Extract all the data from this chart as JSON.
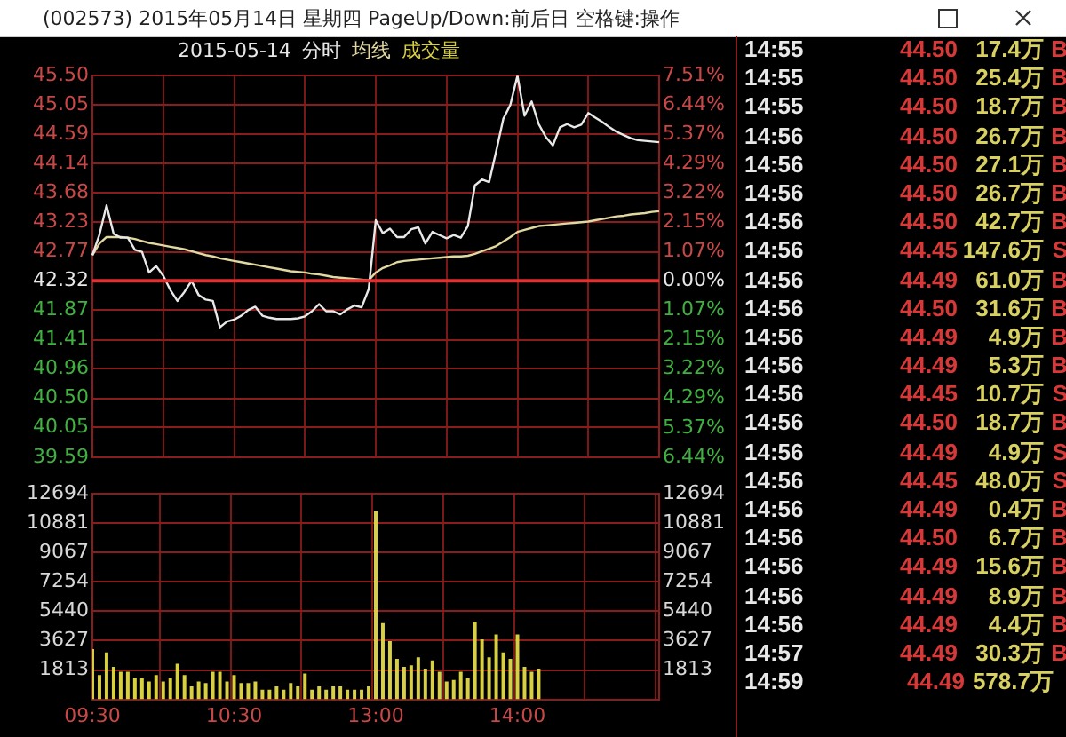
{
  "chart_data": [
    {
      "type": "line",
      "title": "2015-05-14",
      "subtitle": "(002573) 2015年05月14日 星期四 PageUp/Down:前后日 空格键:操作",
      "legend": "top left",
      "grid": true,
      "tick_labels": "y",
      "categories": [
        null,
        null,
        null,
        null,
        null,
        null,
        null,
        null,
        null,
        null,
        null,
        null,
        null,
        null,
        null,
        null,
        null,
        null,
        null,
        null,
        null,
        null,
        null,
        null,
        null,
        null,
        null,
        null,
        null,
        null,
        null,
        null,
        null,
        null,
        null,
        null,
        null,
        null,
        null,
        null,
        null,
        null,
        null,
        null,
        null,
        null,
        null,
        null,
        null,
        null,
        null,
        null,
        null,
        null,
        null,
        null,
        null,
        null,
        null,
        null,
        null,
        null,
        null,
        null,
        null,
        null,
        null,
        null,
        null,
        null,
        null,
        null,
        null,
        null,
        null,
        null,
        null,
        null,
        null,
        null,
        null
      ],
      "ylim": [
        39.59,
        45.5
      ],
      "yticks": [
        {
          "value": 45.5,
          "label": "45.50"
        },
        45.05,
        44.59,
        44.14,
        43.68,
        43.23,
        42.77,
        42.32,
        41.87,
        41.41,
        40.96,
        {
          "value": 40.5,
          "label": "40.50"
        },
        40.05,
        39.59
      ],
      "y2lim": [
        -6.44,
        7.51
      ],
      "y2ticks": [
        {
          "value": 7.51,
          "label": "7.51%"
        },
        {
          "value": 6.44,
          "label": "6.44%"
        },
        {
          "value": 5.37,
          "label": "5.37%"
        },
        {
          "value": 4.29,
          "label": "4.29%"
        },
        {
          "value": 3.22,
          "label": "3.22%"
        },
        {
          "value": 2.15,
          "label": "2.15%"
        },
        {
          "value": 1.07,
          "label": "1.07%"
        },
        {
          "value": 0,
          "label": "0.00%"
        },
        {
          "value": -1.07,
          "label": "1.07%"
        },
        {
          "value": -2.15,
          "label": "2.15%"
        },
        {
          "value": -3.22,
          "label": "3.22%"
        },
        {
          "value": -4.29,
          "label": "4.29%"
        },
        {
          "value": -5.37,
          "label": "5.37%"
        },
        {
          "value": -6.44,
          "label": "6.44%"
        }
      ],
      "ref_lines": [
        {
          "axis": "y",
          "value": 42.32,
          "color": "#e03030"
        }
      ],
      "series": [
        {
          "name": "分时",
          "color": "#e8e8e8",
          "values": [
            42.72,
            43.04,
            43.49,
            43.05,
            42.99,
            42.99,
            42.8,
            42.77,
            42.45,
            42.55,
            42.4,
            42.18,
            42.01,
            42.15,
            42.32,
            42.1,
            42.03,
            42.01,
            41.6,
            41.69,
            41.72,
            41.78,
            41.87,
            41.92,
            41.78,
            41.75,
            41.73,
            41.73,
            41.73,
            41.74,
            41.77,
            41.85,
            41.96,
            41.85,
            41.85,
            41.8,
            41.88,
            41.94,
            41.91,
            42.19,
            43.26,
            43.06,
            43.13,
            43.0,
            43.0,
            43.12,
            43.15,
            42.9,
            43.08,
            43.03,
            42.98,
            43.03,
            42.99,
            43.17,
            43.8,
            43.89,
            43.85,
            44.33,
            44.83,
            45.05,
            45.5,
            44.88,
            45.1,
            44.75,
            44.55,
            44.42,
            44.7,
            44.75,
            44.7,
            44.74,
            44.92,
            44.85,
            44.78,
            44.7,
            44.63,
            44.58,
            44.53,
            44.5,
            44.49,
            44.48,
            44.47
          ]
        },
        {
          "name": "均线",
          "color": "#e0d8a0",
          "values": [
            42.72,
            42.9,
            43.0,
            43.0,
            43.0,
            42.99,
            42.97,
            42.94,
            42.91,
            42.89,
            42.87,
            42.85,
            42.83,
            42.81,
            42.78,
            42.75,
            42.72,
            42.7,
            42.67,
            42.65,
            42.63,
            42.61,
            42.59,
            42.57,
            42.55,
            42.53,
            42.51,
            42.49,
            42.47,
            42.46,
            42.45,
            42.43,
            42.42,
            42.4,
            42.38,
            42.37,
            42.36,
            42.35,
            42.34,
            42.33,
            42.45,
            42.52,
            42.56,
            42.61,
            42.63,
            42.64,
            42.65,
            42.66,
            42.67,
            42.68,
            42.69,
            42.7,
            42.7,
            42.71,
            42.74,
            42.78,
            42.82,
            42.86,
            42.93,
            43.0,
            43.08,
            43.11,
            43.14,
            43.17,
            43.18,
            43.19,
            43.2,
            43.21,
            43.22,
            43.23,
            43.24,
            43.26,
            43.28,
            43.3,
            43.32,
            43.33,
            43.35,
            43.36,
            43.37,
            43.39,
            43.4
          ]
        }
      ]
    },
    {
      "type": "bar",
      "legend": "top",
      "grid": true,
      "categories": [
        "09:30",
        null,
        null,
        null,
        null,
        null,
        null,
        null,
        null,
        null,
        null,
        null,
        null,
        null,
        null,
        null,
        null,
        null,
        null,
        null,
        "10:30",
        null,
        null,
        null,
        null,
        null,
        null,
        null,
        null,
        null,
        null,
        null,
        null,
        null,
        null,
        null,
        null,
        null,
        null,
        null,
        "13:00",
        null,
        null,
        null,
        null,
        null,
        null,
        null,
        null,
        null,
        null,
        null,
        null,
        null,
        null,
        null,
        null,
        null,
        null,
        null,
        "14:00",
        null,
        null,
        null,
        null,
        null,
        null,
        null,
        null,
        null,
        null,
        null,
        null,
        null,
        null,
        null,
        null,
        null,
        null,
        null,
        null
      ],
      "ylim": [
        0,
        12694
      ],
      "yticks": [
        1813,
        3627,
        5440,
        7254,
        9067,
        10881,
        12694
      ],
      "y2lim": [
        0,
        12694
      ],
      "y2ticks": [
        1813,
        3627,
        5440,
        7254,
        9067,
        10881,
        12694
      ],
      "series": [
        {
          "name": "成交量",
          "color": "#d8d040",
          "values": [
            3100,
            1500,
            2900,
            2000,
            1700,
            1700,
            1300,
            1300,
            1100,
            1500,
            1100,
            1300,
            2200,
            1500,
            800,
            1100,
            1000,
            1700,
            1700,
            1100,
            1500,
            1000,
            1000,
            1100,
            600,
            600,
            800,
            600,
            1000,
            800,
            1600,
            600,
            800,
            600,
            800,
            800,
            600,
            600,
            600,
            800,
            11600,
            4700,
            3600,
            2500,
            2000,
            2100,
            2600,
            1900,
            2400,
            1700,
            1100,
            1200,
            1700,
            1300,
            4800,
            3700,
            2600,
            4000,
            2900,
            2500,
            4000,
            2000,
            1700,
            1900,
            null,
            null,
            null,
            null,
            null,
            null,
            null,
            null,
            null,
            null,
            null,
            null,
            null,
            null,
            null,
            null,
            null
          ]
        }
      ]
    },
    {
      "type": "other",
      "annotations": [
        "14:55 44.50 17.4万 B",
        "14:55 44.50 25.4万 B",
        "14:55 44.50 18.7万 B",
        "14:56 44.50 26.7万 B",
        "14:56 44.50 27.1万 B",
        "14:56 44.50 26.7万 B",
        "14:56 44.50 42.7万 B",
        "14:56 44.45 147.6万 S",
        "14:56 44.49 61.0万 B",
        "14:56 44.50 31.6万 B",
        "14:56 44.49 4.9万 B",
        "14:56 44.49 5.3万 B",
        "14:56 44.45 10.7万 S",
        "14:56 44.50 18.7万 B",
        "14:56 44.49 4.9万 S",
        "14:56 44.45 48.0万 S",
        "14:56 44.49 0.4万 B",
        "14:56 44.50 6.7万 B",
        "14:56 44.49 15.6万 B",
        "14:56 44.49 8.9万 B",
        "14:56 44.49 4.4万 B",
        "14:57 44.49 30.3万 B",
        "14:59 44.49 578.7万"
      ]
    }
  ]
}
